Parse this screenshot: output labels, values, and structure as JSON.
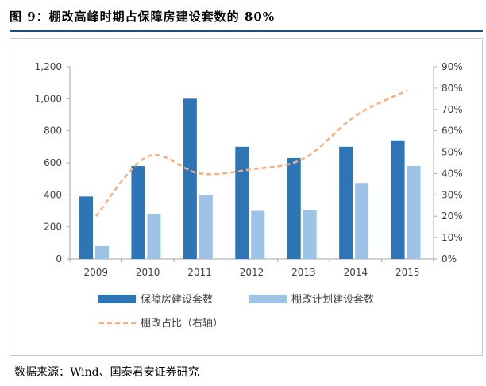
{
  "figure": {
    "title": "图 9：棚改高峰时期占保障房建设套数的 80%",
    "source": "数据来源：Wind、国泰君安证券研究"
  },
  "colors": {
    "bar1": "#2e75b6",
    "bar2": "#9dc3e6",
    "line": "#f4b183",
    "rule": "#1f4e79"
  },
  "chart_data": {
    "type": "bar",
    "categories": [
      "2009",
      "2010",
      "2011",
      "2012",
      "2013",
      "2014",
      "2015"
    ],
    "series": [
      {
        "name": "保障房建设套数",
        "type": "bar",
        "axis": "left",
        "values": [
          390,
          580,
          1000,
          700,
          630,
          700,
          740
        ]
      },
      {
        "name": "棚改计划建设套数",
        "type": "bar",
        "axis": "left",
        "values": [
          80,
          280,
          400,
          300,
          305,
          470,
          580
        ]
      },
      {
        "name": "棚改占比（右轴）",
        "type": "line",
        "style": "dashed",
        "axis": "right",
        "values": [
          0.2,
          0.48,
          0.4,
          0.42,
          0.47,
          0.67,
          0.79
        ]
      }
    ],
    "left_axis": {
      "min": 0,
      "max": 1200,
      "step": 200,
      "tick_labels": [
        "0",
        "200",
        "400",
        "600",
        "800",
        "1,000",
        "1,200"
      ]
    },
    "right_axis": {
      "min": 0,
      "max": 0.9,
      "step": 0.1,
      "tick_labels": [
        "0%",
        "10%",
        "20%",
        "30%",
        "40%",
        "50%",
        "60%",
        "70%",
        "80%",
        "90%"
      ]
    },
    "legend": [
      "保障房建设套数",
      "棚改计划建设套数",
      "棚改占比（右轴）"
    ],
    "legend_position": "bottom",
    "grid": false
  }
}
